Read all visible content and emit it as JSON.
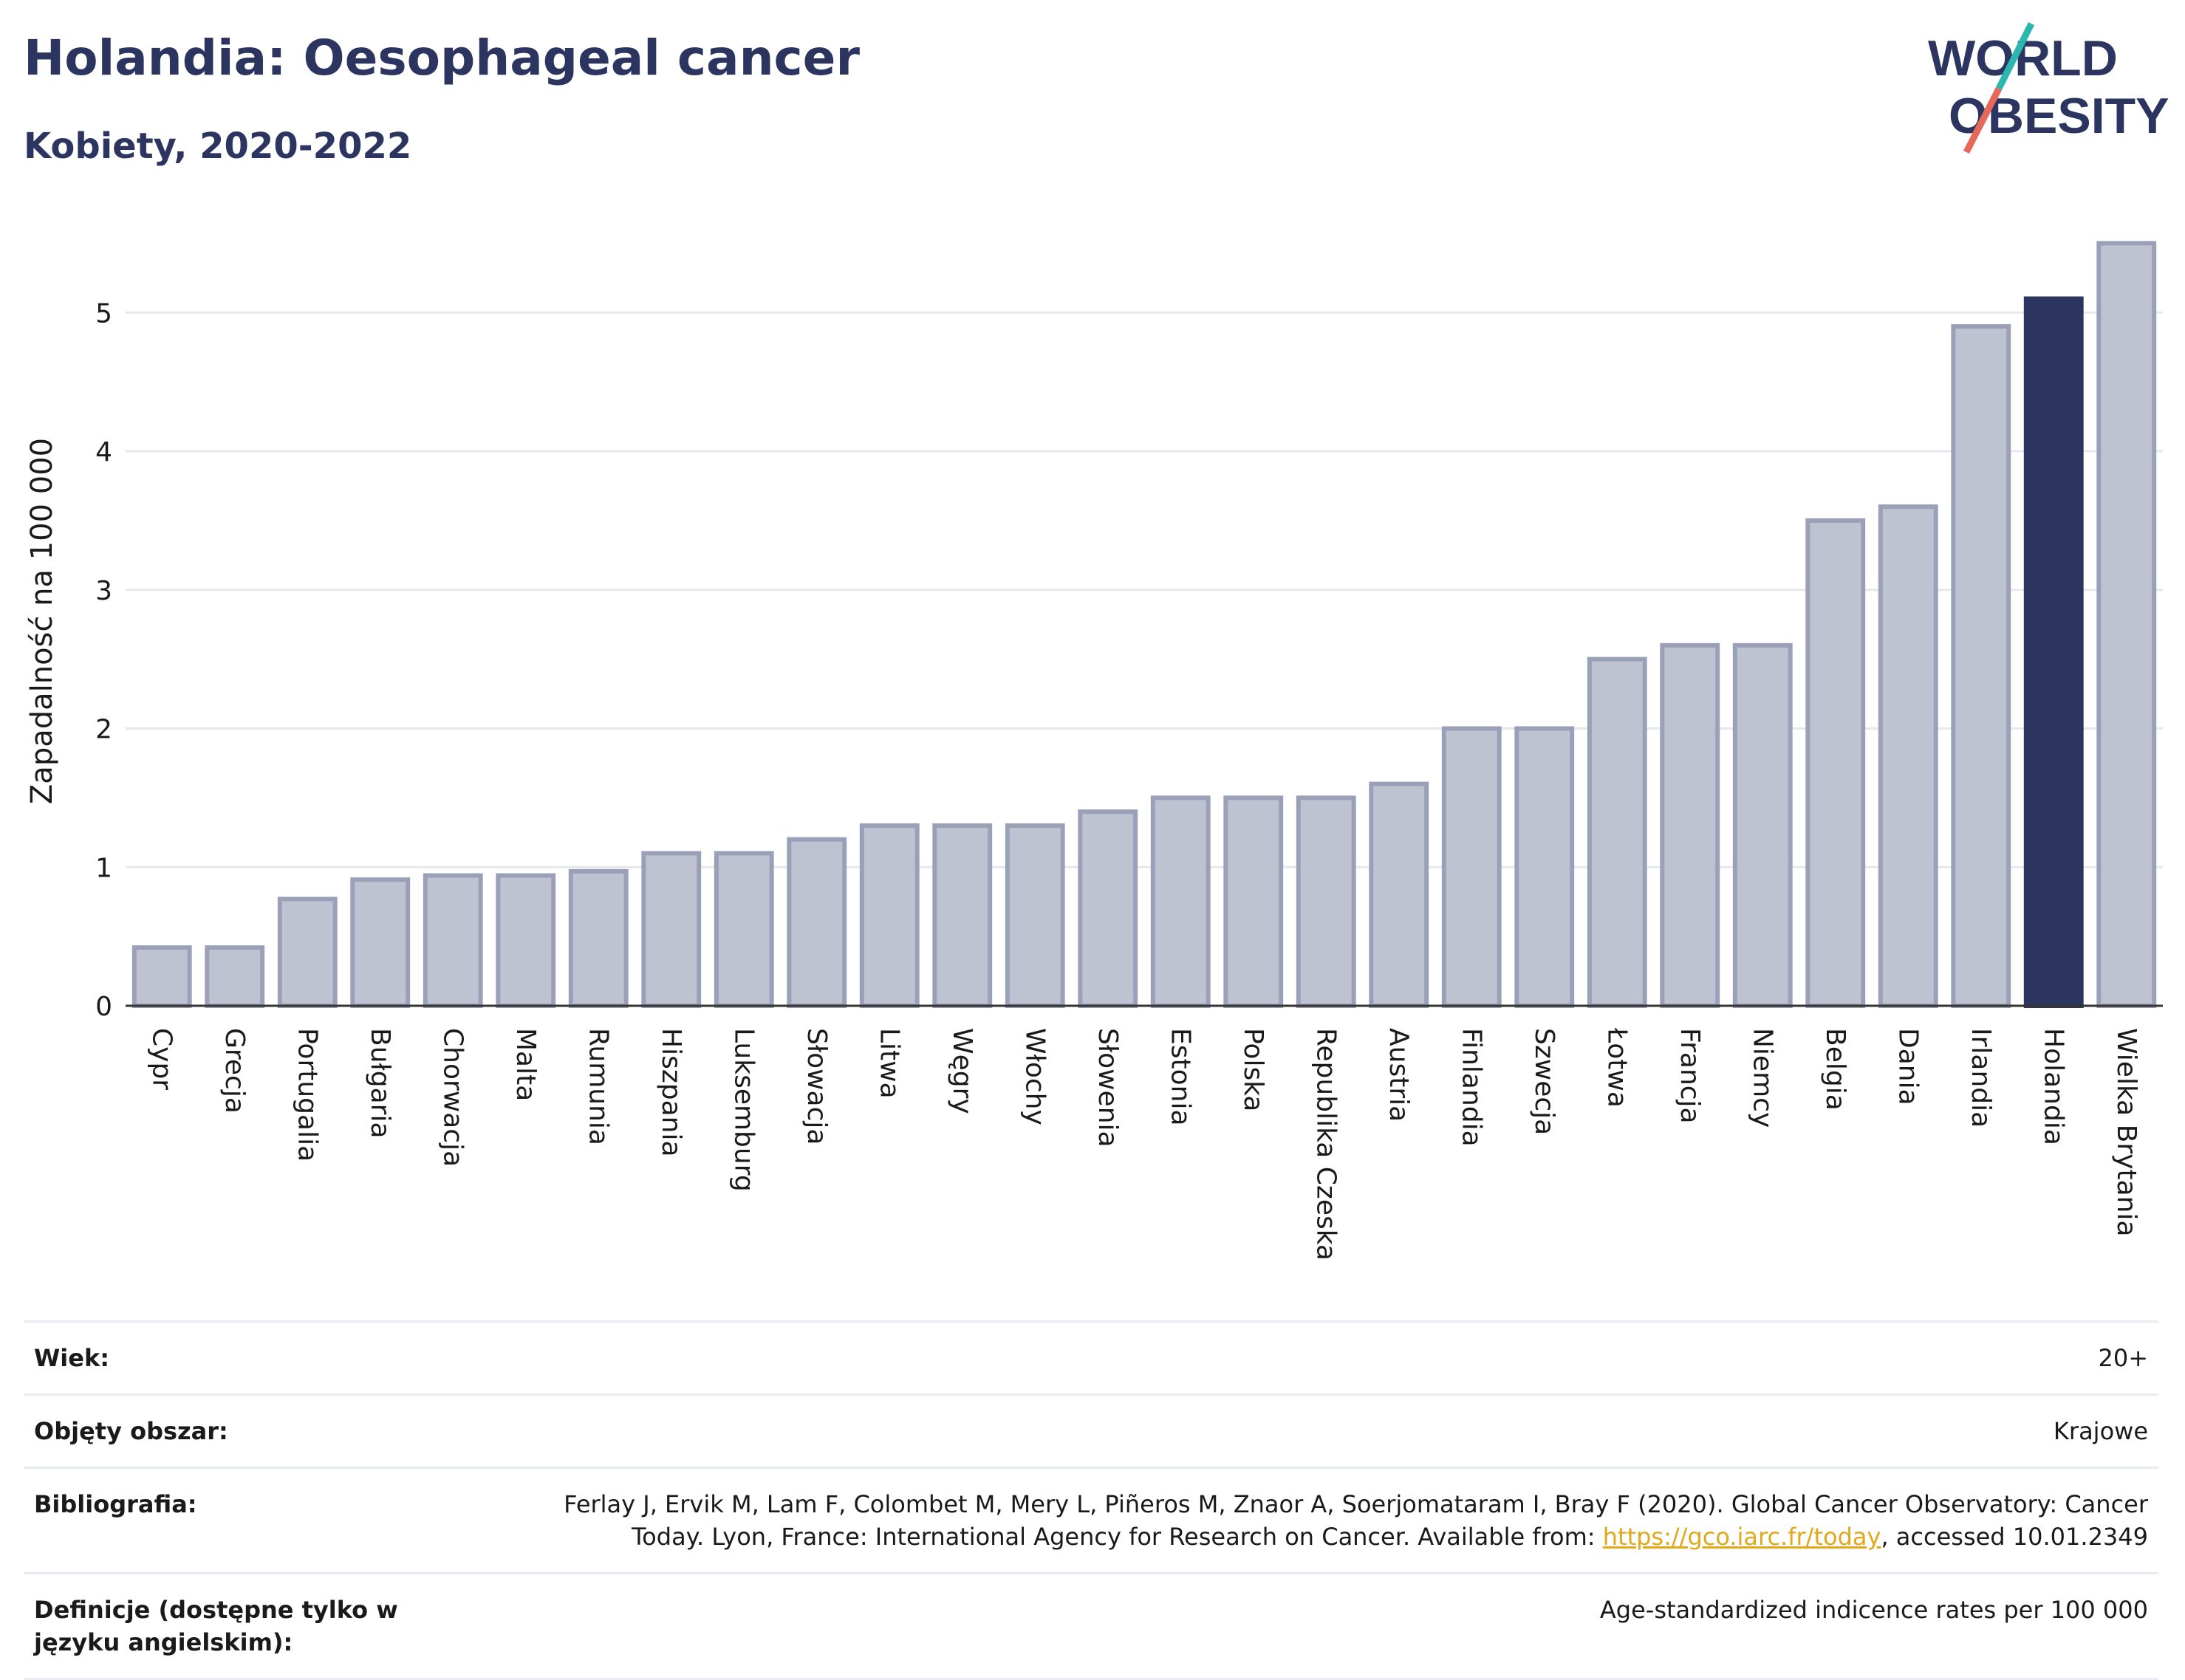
{
  "header": {
    "title": "Holandia: Oesophageal cancer",
    "subtitle": "Kobiety, 2020-2022",
    "logo_line1": "WORLD",
    "logo_line2": "OBESITY"
  },
  "colors": {
    "bar": "#bfc3d1",
    "bar_border": "#9aa0b8",
    "highlight": "#2b3560",
    "grid": "#e6e8ee",
    "axis_text": "#1a1a1a",
    "link": "#e0a81a"
  },
  "chart_data": {
    "type": "bar",
    "title": "Holandia: Oesophageal cancer",
    "subtitle": "Kobiety, 2020-2022",
    "ylabel": "Zapadalność na 100 000",
    "xlabel": "",
    "ylim": [
      0,
      5.55
    ],
    "yticks": [
      0,
      1,
      2,
      3,
      4,
      5
    ],
    "grid": true,
    "highlight": "Holandia",
    "categories": [
      "Cypr",
      "Grecja",
      "Portugalia",
      "Bułgaria",
      "Chorwacja",
      "Malta",
      "Rumunia",
      "Hiszpania",
      "Luksemburg",
      "Słowacja",
      "Litwa",
      "Węgry",
      "Włochy",
      "Słowenia",
      "Estonia",
      "Polska",
      "Republika Czeska",
      "Austria",
      "Finlandia",
      "Szwecja",
      "Łotwa",
      "Francja",
      "Niemcy",
      "Belgia",
      "Dania",
      "Irlandia",
      "Holandia",
      "Wielka Brytania"
    ],
    "values": [
      0.42,
      0.42,
      0.77,
      0.91,
      0.94,
      0.94,
      0.97,
      1.1,
      1.1,
      1.2,
      1.3,
      1.3,
      1.3,
      1.4,
      1.5,
      1.5,
      1.5,
      1.6,
      2.0,
      2.0,
      2.5,
      2.6,
      2.6,
      3.5,
      3.6,
      4.9,
      5.1,
      5.5
    ]
  },
  "meta": {
    "rows": [
      {
        "key": "Wiek:",
        "value": "20+"
      },
      {
        "key": "Objęty obszar:",
        "value": "Krajowe"
      },
      {
        "key": "Bibliografia:",
        "value_before": "Ferlay J, Ervik M, Lam F, Colombet M, Mery L, Piñeros M, Znaor A, Soerjomataram I, Bray F (2020). Global Cancer Observatory: Cancer Today. Lyon, France: International Agency for Research on Cancer. Available from: ",
        "link": "https://gco.iarc.fr/today",
        "value_after": ", accessed 10.01.2349"
      },
      {
        "key": "Definicje (dostępne tylko w języku angielskim):",
        "value": "Age-standardized indicence rates per 100 000"
      }
    ]
  }
}
